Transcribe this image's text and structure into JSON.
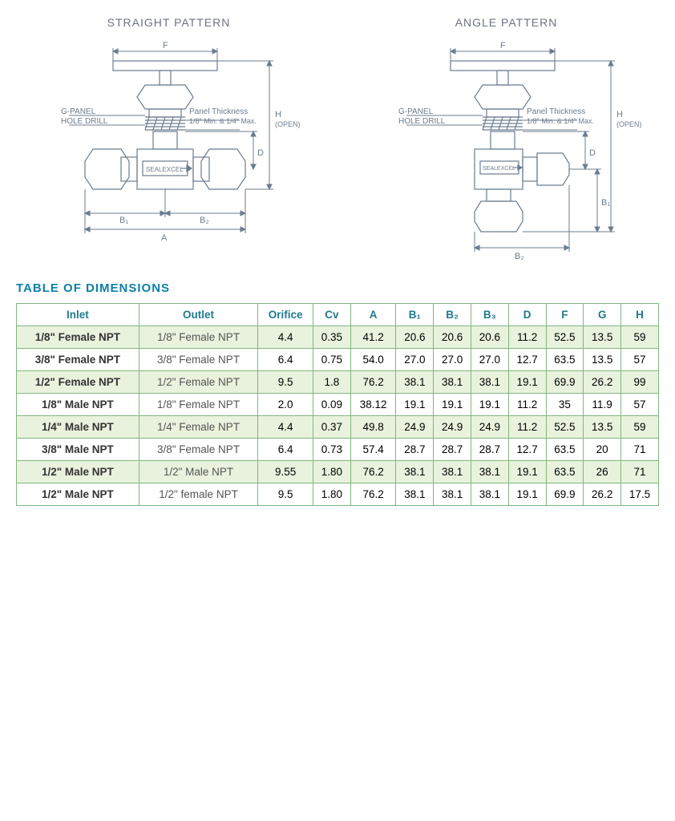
{
  "diagrams": {
    "left_title": "STRAIGHT PATTERN",
    "right_title": "ANGLE PATTERN",
    "label_gpanel": "G-PANEL",
    "label_holedrill": "HOLE DRILL",
    "label_panel_thickness1": "Panel Thickness",
    "label_panel_thickness2": "1/8\" Min. & 1/4\" Max.",
    "brand": "SEALEXCEL",
    "dim_F": "F",
    "dim_H": "H",
    "dim_H_open": "(OPEN)",
    "dim_D": "D",
    "dim_B1": "B₁",
    "dim_B2": "B₂",
    "dim_A": "A",
    "stroke": "#6b7c8e",
    "label_color": "#6b7c8e",
    "label_fontsize": 10
  },
  "table_title": "TABLE OF DIMENSIONS",
  "table": {
    "columns": [
      "Inlet",
      "Outlet",
      "Orifice",
      "Cv",
      "A",
      "B1",
      "B2",
      "B3",
      "D",
      "F",
      "G",
      "H"
    ],
    "column_labels": [
      "Inlet",
      "Outlet",
      "Orifice",
      "Cv",
      "A",
      "B₁",
      "B₂",
      "B₃",
      "D",
      "F",
      "G",
      "H"
    ],
    "rows": [
      {
        "alt": true,
        "cells": [
          "1/8\" Female NPT",
          "1/8\" Female NPT",
          "4.4",
          "0.35",
          "41.2",
          "20.6",
          "20.6",
          "20.6",
          "11.2",
          "52.5",
          "13.5",
          "59"
        ]
      },
      {
        "alt": false,
        "cells": [
          "3/8\" Female NPT",
          "3/8\" Female NPT",
          "6.4",
          "0.75",
          "54.0",
          "27.0",
          "27.0",
          "27.0",
          "12.7",
          "63.5",
          "13.5",
          "57"
        ]
      },
      {
        "alt": true,
        "cells": [
          "1/2\" Female NPT",
          "1/2\" Female NPT",
          "9.5",
          "1.8",
          "76.2",
          "38.1",
          "38.1",
          "38.1",
          "19.1",
          "69.9",
          "26.2",
          "99"
        ]
      },
      {
        "alt": false,
        "cells": [
          "1/8\" Male NPT",
          "1/8\" Female NPT",
          "2.0",
          "0.09",
          "38.12",
          "19.1",
          "19.1",
          "19.1",
          "11.2",
          "35",
          "11.9",
          "57"
        ]
      },
      {
        "alt": true,
        "cells": [
          "1/4\" Male NPT",
          "1/4\" Female NPT",
          "4.4",
          "0.37",
          "49.8",
          "24.9",
          "24.9",
          "24.9",
          "11.2",
          "52.5",
          "13.5",
          "59"
        ]
      },
      {
        "alt": false,
        "cells": [
          "3/8\" Male NPT",
          "3/8\" Female NPT",
          "6.4",
          "0.73",
          "57.4",
          "28.7",
          "28.7",
          "28.7",
          "12.7",
          "63.5",
          "20",
          "71"
        ]
      },
      {
        "alt": true,
        "cells": [
          "1/2\" Male NPT",
          "1/2\" Male NPT",
          "9.55",
          "1.80",
          "76.2",
          "38.1",
          "38.1",
          "38.1",
          "19.1",
          "63.5",
          "26",
          "71"
        ]
      },
      {
        "alt": false,
        "cells": [
          "1/2\" Male NPT",
          "1/2\" female NPT",
          "9.5",
          "1.80",
          "76.2",
          "38.1",
          "38.1",
          "38.1",
          "19.1",
          "69.9",
          "26.2",
          "17.5"
        ]
      }
    ],
    "header_color": "#1f7a8c",
    "border_color": "#7fb77e",
    "alt_bg": "#e9f2dd"
  }
}
